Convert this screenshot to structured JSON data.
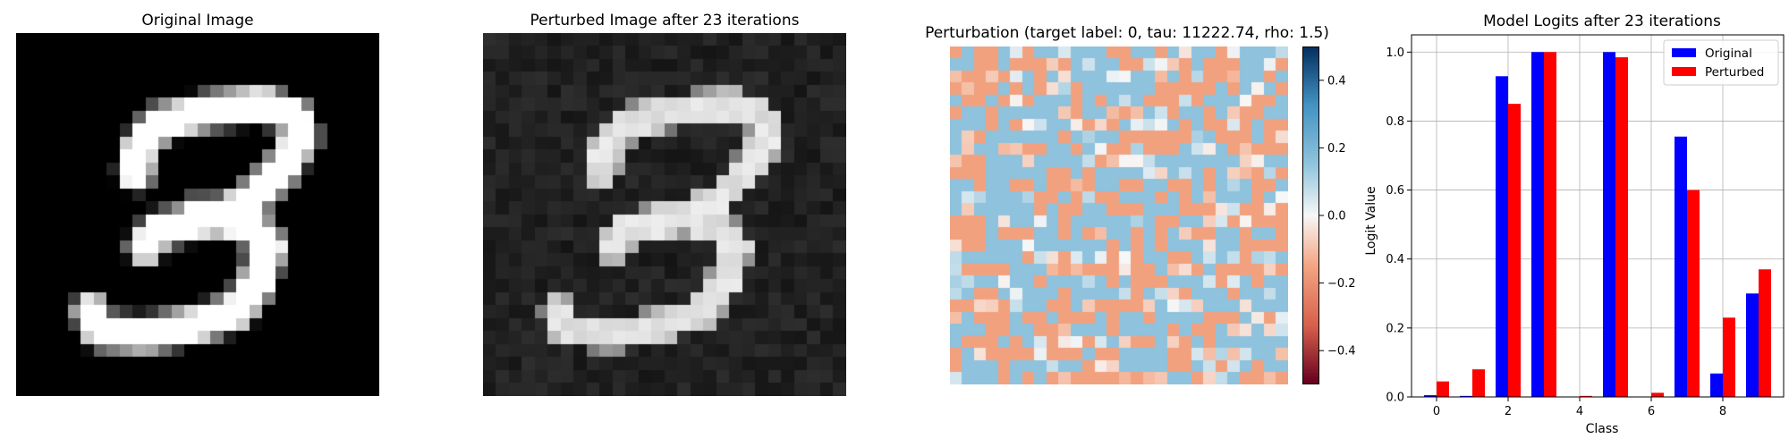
{
  "panels": {
    "original_title": "Original Image",
    "perturbed_title": "Perturbed Image after 23 iterations",
    "perturbation_title": "Perturbation (target label: 0, tau: 11222.74, rho: 1.5)",
    "logits_title": "Model Logits after 23 iterations"
  },
  "colorbar": {
    "ticks": [
      "0.4",
      "0.2",
      "0.0",
      "−0.2",
      "−0.4"
    ],
    "tick_values": [
      0.4,
      0.2,
      0.0,
      -0.2,
      -0.4
    ],
    "range": [
      -0.5,
      0.5
    ],
    "colormap": "RdBu"
  },
  "chart_data": {
    "type": "bar",
    "title": "Model Logits after 23 iterations",
    "xlabel": "Class",
    "ylabel": "Logit Value",
    "categories": [
      0,
      1,
      2,
      3,
      4,
      5,
      6,
      7,
      8,
      9
    ],
    "xticks": [
      "0",
      "2",
      "4",
      "6",
      "8"
    ],
    "xtick_values": [
      0,
      2,
      4,
      6,
      8
    ],
    "yticks": [
      "0.0",
      "0.2",
      "0.4",
      "0.6",
      "0.8",
      "1.0"
    ],
    "ytick_values": [
      0.0,
      0.2,
      0.4,
      0.6,
      0.8,
      1.0
    ],
    "ylim": [
      0,
      1.05
    ],
    "grid": true,
    "legend_position": "top-right",
    "series": [
      {
        "name": "Original",
        "color": "#0000ff",
        "values": [
          0.005,
          0.003,
          0.93,
          1.0,
          0.0,
          1.0,
          0.001,
          0.755,
          0.068,
          0.3
        ]
      },
      {
        "name": "Perturbed",
        "color": "#ff0000",
        "values": [
          0.045,
          0.08,
          0.85,
          1.0,
          0.003,
          0.985,
          0.012,
          0.6,
          0.23,
          0.37
        ]
      }
    ]
  }
}
